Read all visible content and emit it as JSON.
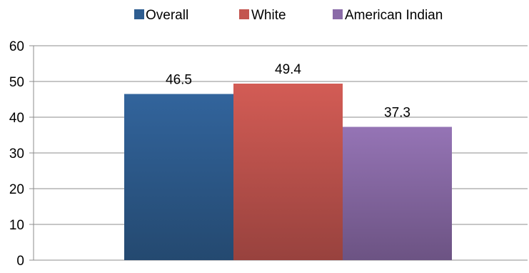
{
  "chart_data": {
    "type": "bar",
    "title": "",
    "xlabel": "",
    "ylabel": "",
    "ylim": [
      0,
      60
    ],
    "yticks": [
      0,
      10,
      20,
      30,
      40,
      50,
      60
    ],
    "grid": true,
    "legend_position": "top",
    "categories": [
      ""
    ],
    "series": [
      {
        "name": "Overall",
        "values": [
          46.5
        ],
        "color": "#2e5d90",
        "label": "46.5"
      },
      {
        "name": "White",
        "values": [
          49.4
        ],
        "color": "#c3554f",
        "label": "49.4"
      },
      {
        "name": "American Indian",
        "values": [
          37.3
        ],
        "color": "#8a6ba8",
        "label": "37.3"
      }
    ]
  }
}
